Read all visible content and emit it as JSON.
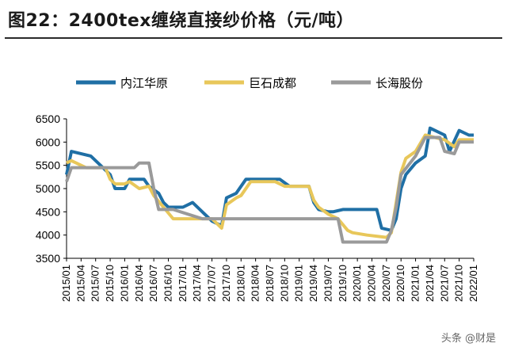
{
  "header": {
    "title": "图22：2400tex缠绕直接纱价格（元/吨）"
  },
  "watermark": "头条 @财是",
  "chart_data": {
    "type": "line",
    "title": "2400tex缠绕直接纱价格（元/吨）",
    "xlabel": "",
    "ylabel": "",
    "ylim": [
      3500,
      6500
    ],
    "yticks": [
      3500,
      4000,
      4500,
      5000,
      5500,
      6000,
      6500
    ],
    "xlim": [
      "2015/01",
      "2022/01"
    ],
    "xticks": [
      "2015/01",
      "2015/04",
      "2015/07",
      "2015/10",
      "2016/01",
      "2016/04",
      "2016/07",
      "2016/10",
      "2017/01",
      "2017/04",
      "2017/07",
      "2017/10",
      "2018/01",
      "2018/04",
      "2018/07",
      "2018/10",
      "2019/01",
      "2019/04",
      "2019/07",
      "2019/10",
      "2020/01",
      "2020/04",
      "2020/07",
      "2020/10",
      "2021/01",
      "2021/04",
      "2021/07",
      "2021/10",
      "2022/01"
    ],
    "grid": false,
    "legend_position": "top",
    "series": [
      {
        "name": "内江华原",
        "color": "#1f6fa5",
        "points": [
          [
            "2015/01",
            5300
          ],
          [
            "2015/02",
            5800
          ],
          [
            "2015/06",
            5700
          ],
          [
            "2015/10",
            5300
          ],
          [
            "2015/11",
            5000
          ],
          [
            "2016/01",
            5000
          ],
          [
            "2016/02",
            5200
          ],
          [
            "2016/05",
            5200
          ],
          [
            "2016/06",
            5050
          ],
          [
            "2016/08",
            4900
          ],
          [
            "2016/09",
            4700
          ],
          [
            "2016/10",
            4600
          ],
          [
            "2017/01",
            4600
          ],
          [
            "2017/03",
            4700
          ],
          [
            "2017/07",
            4300
          ],
          [
            "2017/09",
            4200
          ],
          [
            "2017/10",
            4800
          ],
          [
            "2017/12",
            4900
          ],
          [
            "2018/02",
            5200
          ],
          [
            "2018/08",
            5200
          ],
          [
            "2018/09",
            5200
          ],
          [
            "2018/11",
            5050
          ],
          [
            "2019/03",
            5050
          ],
          [
            "2019/04",
            4700
          ],
          [
            "2019/05",
            4550
          ],
          [
            "2019/07",
            4500
          ],
          [
            "2019/08",
            4500
          ],
          [
            "2019/10",
            4550
          ],
          [
            "2020/05",
            4550
          ],
          [
            "2020/06",
            4150
          ],
          [
            "2020/08",
            4100
          ],
          [
            "2020/09",
            4350
          ],
          [
            "2020/10",
            5000
          ],
          [
            "2020/11",
            5300
          ],
          [
            "2021/01",
            5550
          ],
          [
            "2021/03",
            5700
          ],
          [
            "2021/04",
            6300
          ],
          [
            "2021/07",
            6150
          ],
          [
            "2021/08",
            5800
          ],
          [
            "2021/10",
            6250
          ],
          [
            "2021/12",
            6150
          ],
          [
            "2022/01",
            6150
          ]
        ]
      },
      {
        "name": "巨石成都",
        "color": "#e8c75a",
        "points": [
          [
            "2015/01",
            5550
          ],
          [
            "2015/02",
            5600
          ],
          [
            "2015/05",
            5450
          ],
          [
            "2015/09",
            5450
          ],
          [
            "2015/10",
            5200
          ],
          [
            "2015/11",
            5100
          ],
          [
            "2016/01",
            5100
          ],
          [
            "2016/02",
            5150
          ],
          [
            "2016/04",
            5000
          ],
          [
            "2016/06",
            5050
          ],
          [
            "2016/07",
            4850
          ],
          [
            "2016/09",
            4600
          ],
          [
            "2016/11",
            4350
          ],
          [
            "2017/02",
            4350
          ],
          [
            "2017/04",
            4350
          ],
          [
            "2017/07",
            4350
          ],
          [
            "2017/09",
            4150
          ],
          [
            "2017/10",
            4650
          ],
          [
            "2017/12",
            4800
          ],
          [
            "2018/01",
            4850
          ],
          [
            "2018/03",
            5150
          ],
          [
            "2018/08",
            5150
          ],
          [
            "2018/10",
            5050
          ],
          [
            "2019/03",
            5050
          ],
          [
            "2019/04",
            4750
          ],
          [
            "2019/05",
            4600
          ],
          [
            "2019/07",
            4450
          ],
          [
            "2019/09",
            4350
          ],
          [
            "2019/11",
            4100
          ],
          [
            "2019/12",
            4050
          ],
          [
            "2020/03",
            4000
          ],
          [
            "2020/07",
            3950
          ],
          [
            "2020/08",
            4050
          ],
          [
            "2020/10",
            5350
          ],
          [
            "2020/11",
            5650
          ],
          [
            "2021/01",
            5800
          ],
          [
            "2021/03",
            6150
          ],
          [
            "2021/05",
            6100
          ],
          [
            "2021/07",
            6050
          ],
          [
            "2021/09",
            5900
          ],
          [
            "2021/10",
            6050
          ],
          [
            "2022/01",
            6050
          ]
        ]
      },
      {
        "name": "长海股份",
        "color": "#9a9a9a",
        "points": [
          [
            "2015/01",
            5150
          ],
          [
            "2015/02",
            5450
          ],
          [
            "2016/03",
            5450
          ],
          [
            "2016/04",
            5550
          ],
          [
            "2016/06",
            5550
          ],
          [
            "2016/07",
            5000
          ],
          [
            "2016/08",
            4550
          ],
          [
            "2016/10",
            4550
          ],
          [
            "2016/11",
            4550
          ],
          [
            "2017/05",
            4350
          ],
          [
            "2019/09",
            4350
          ],
          [
            "2019/10",
            3850
          ],
          [
            "2020/07",
            3850
          ],
          [
            "2020/08",
            4100
          ],
          [
            "2020/09",
            4600
          ],
          [
            "2020/10",
            5300
          ],
          [
            "2021/01",
            5700
          ],
          [
            "2021/03",
            6100
          ],
          [
            "2021/06",
            6100
          ],
          [
            "2021/07",
            5800
          ],
          [
            "2021/09",
            5750
          ],
          [
            "2021/10",
            6000
          ],
          [
            "2022/01",
            6000
          ]
        ]
      }
    ]
  }
}
